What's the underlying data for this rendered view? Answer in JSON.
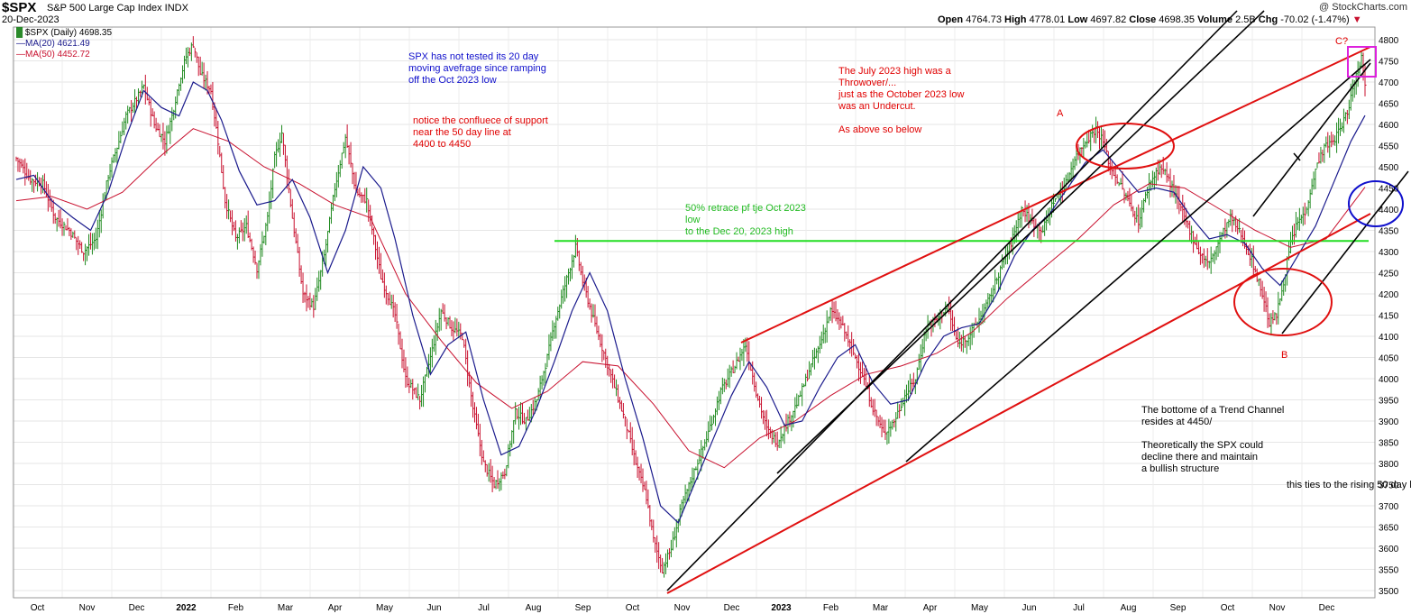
{
  "header": {
    "symbol": "$SPX",
    "name": "S&P 500 Large Cap Index INDX",
    "date": "20-Dec-2023",
    "credit": "@ StockCharts.com",
    "ohlc": {
      "open_label": "Open",
      "open": "4764.73",
      "high_label": "High",
      "high": "4778.01",
      "low_label": "Low",
      "low": "4697.82",
      "close_label": "Close",
      "close": "4698.35",
      "volume_label": "Volume",
      "volume": "2.5B",
      "chg_label": "Chg",
      "chg": "-70.02 (-1.47%)"
    }
  },
  "legend": [
    {
      "text": "$SPX (Daily) 4698.35",
      "color": "#000000"
    },
    {
      "text": "MA(20) 4621.49",
      "color": "#1a1a8c"
    },
    {
      "text": "MA(50) 4452.72",
      "color": "#c8102e"
    }
  ],
  "annotations": [
    {
      "text": "SPX has not tested its 20 day\nmoving avefrage since ramping\noff the Oct 2023 low",
      "color": "#1010cc"
    },
    {
      "text": "notice the confluece of support\nnear the 50 day line at\n4400 to 4450",
      "color": "#e00000"
    },
    {
      "text": "The July 2023 high was a\nThrowover/...\njust as the October 2023 low\nwas an Undercut.\n\nAs above so below",
      "color": "#e00000"
    },
    {
      "text": "50% retrace pf tje Oct 2023\nlow\nto the Dec 20, 2023 high",
      "color": "#22bb22"
    },
    {
      "text": "The bottome of a Trend Channel\nresides at 4450/\n\nTheoretically the SPX could\ndecline there and maintain\na bullish structure",
      "color": "#000000"
    },
    {
      "text": "this ties to the rising 50 day li",
      "color": "#000000"
    },
    {
      "text": "A",
      "color": "#e00000"
    },
    {
      "text": "B",
      "color": "#e00000"
    },
    {
      "text": "C?",
      "color": "#e00000"
    }
  ],
  "chart_data": {
    "type": "line",
    "title": "$SPX S&P 500 Large Cap Index INDX",
    "xlabel": "",
    "ylabel": "",
    "ylim": [
      3480,
      4830
    ],
    "y_ticks": [
      3500,
      3550,
      3600,
      3650,
      3700,
      3750,
      3800,
      3850,
      3900,
      3950,
      4000,
      4050,
      4100,
      4150,
      4200,
      4250,
      4300,
      4350,
      4400,
      4450,
      4500,
      4550,
      4600,
      4650,
      4700,
      4750,
      4800
    ],
    "x_ticks": [
      {
        "label": "Oct",
        "bold": false
      },
      {
        "label": "Nov",
        "bold": false
      },
      {
        "label": "Dec",
        "bold": false
      },
      {
        "label": "2022",
        "bold": true
      },
      {
        "label": "Feb",
        "bold": false
      },
      {
        "label": "Mar",
        "bold": false
      },
      {
        "label": "Apr",
        "bold": false
      },
      {
        "label": "May",
        "bold": false
      },
      {
        "label": "Jun",
        "bold": false
      },
      {
        "label": "Jul",
        "bold": false
      },
      {
        "label": "Aug",
        "bold": false
      },
      {
        "label": "Sep",
        "bold": false
      },
      {
        "label": "Oct",
        "bold": false
      },
      {
        "label": "Nov",
        "bold": false
      },
      {
        "label": "Dec",
        "bold": false
      },
      {
        "label": "2023",
        "bold": true
      },
      {
        "label": "Feb",
        "bold": false
      },
      {
        "label": "Mar",
        "bold": false
      },
      {
        "label": "Apr",
        "bold": false
      },
      {
        "label": "May",
        "bold": false
      },
      {
        "label": "Jun",
        "bold": false
      },
      {
        "label": "Jul",
        "bold": false
      },
      {
        "label": "Aug",
        "bold": false
      },
      {
        "label": "Sep",
        "bold": false
      },
      {
        "label": "Oct",
        "bold": false
      },
      {
        "label": "Nov",
        "bold": false
      },
      {
        "label": "Dec",
        "bold": false
      }
    ],
    "price_path": [
      [
        0,
        4520
      ],
      [
        8,
        4470
      ],
      [
        15,
        4460
      ],
      [
        22,
        4380
      ],
      [
        30,
        4350
      ],
      [
        38,
        4300
      ],
      [
        45,
        4330
      ],
      [
        52,
        4480
      ],
      [
        58,
        4560
      ],
      [
        62,
        4620
      ],
      [
        68,
        4660
      ],
      [
        72,
        4690
      ],
      [
        78,
        4600
      ],
      [
        84,
        4560
      ],
      [
        88,
        4620
      ],
      [
        92,
        4700
      ],
      [
        96,
        4760
      ],
      [
        100,
        4790
      ],
      [
        104,
        4720
      ],
      [
        110,
        4680
      ],
      [
        114,
        4560
      ],
      [
        118,
        4420
      ],
      [
        124,
        4330
      ],
      [
        130,
        4360
      ],
      [
        136,
        4260
      ],
      [
        142,
        4380
      ],
      [
        146,
        4520
      ],
      [
        150,
        4580
      ],
      [
        156,
        4380
      ],
      [
        162,
        4200
      ],
      [
        168,
        4170
      ],
      [
        174,
        4290
      ],
      [
        180,
        4450
      ],
      [
        186,
        4570
      ],
      [
        192,
        4440
      ],
      [
        198,
        4420
      ],
      [
        206,
        4240
      ],
      [
        214,
        4150
      ],
      [
        220,
        4000
      ],
      [
        228,
        3950
      ],
      [
        234,
        4050
      ],
      [
        240,
        4160
      ],
      [
        246,
        4120
      ],
      [
        252,
        4100
      ],
      [
        258,
        3930
      ],
      [
        264,
        3800
      ],
      [
        270,
        3750
      ],
      [
        276,
        3780
      ],
      [
        282,
        3920
      ],
      [
        288,
        3900
      ],
      [
        294,
        3950
      ],
      [
        300,
        4050
      ],
      [
        304,
        4130
      ],
      [
        310,
        4220
      ],
      [
        316,
        4310
      ],
      [
        320,
        4230
      ],
      [
        326,
        4140
      ],
      [
        332,
        4060
      ],
      [
        338,
        3980
      ],
      [
        344,
        3900
      ],
      [
        350,
        3800
      ],
      [
        356,
        3720
      ],
      [
        360,
        3620
      ],
      [
        365,
        3550
      ],
      [
        370,
        3600
      ],
      [
        376,
        3700
      ],
      [
        382,
        3770
      ],
      [
        390,
        3860
      ],
      [
        398,
        3970
      ],
      [
        406,
        4030
      ],
      [
        412,
        4080
      ],
      [
        418,
        3970
      ],
      [
        424,
        3880
      ],
      [
        430,
        3850
      ],
      [
        436,
        3900
      ],
      [
        442,
        3950
      ],
      [
        448,
        4020
      ],
      [
        454,
        4080
      ],
      [
        460,
        4160
      ],
      [
        466,
        4130
      ],
      [
        472,
        4070
      ],
      [
        478,
        4010
      ],
      [
        484,
        3930
      ],
      [
        490,
        3870
      ],
      [
        496,
        3900
      ],
      [
        502,
        3960
      ],
      [
        508,
        4000
      ],
      [
        514,
        4120
      ],
      [
        520,
        4140
      ],
      [
        526,
        4170
      ],
      [
        532,
        4080
      ],
      [
        538,
        4100
      ],
      [
        544,
        4140
      ],
      [
        550,
        4190
      ],
      [
        556,
        4260
      ],
      [
        562,
        4320
      ],
      [
        568,
        4400
      ],
      [
        574,
        4370
      ],
      [
        580,
        4350
      ],
      [
        586,
        4420
      ],
      [
        592,
        4450
      ],
      [
        598,
        4520
      ],
      [
        604,
        4560
      ],
      [
        610,
        4590
      ],
      [
        614,
        4560
      ],
      [
        618,
        4500
      ],
      [
        622,
        4470
      ],
      [
        628,
        4420
      ],
      [
        634,
        4370
      ],
      [
        640,
        4460
      ],
      [
        646,
        4500
      ],
      [
        650,
        4480
      ],
      [
        656,
        4420
      ],
      [
        662,
        4360
      ],
      [
        668,
        4300
      ],
      [
        674,
        4270
      ],
      [
        680,
        4330
      ],
      [
        686,
        4380
      ],
      [
        692,
        4340
      ],
      [
        698,
        4280
      ],
      [
        704,
        4200
      ],
      [
        708,
        4130
      ],
      [
        712,
        4150
      ],
      [
        716,
        4230
      ],
      [
        720,
        4320
      ],
      [
        724,
        4370
      ],
      [
        728,
        4390
      ],
      [
        732,
        4460
      ],
      [
        736,
        4520
      ],
      [
        740,
        4550
      ],
      [
        744,
        4560
      ],
      [
        748,
        4590
      ],
      [
        752,
        4630
      ],
      [
        756,
        4700
      ],
      [
        760,
        4760
      ],
      [
        762,
        4698
      ]
    ],
    "ma20_path": [
      [
        0,
        4470
      ],
      [
        10,
        4480
      ],
      [
        20,
        4420
      ],
      [
        32,
        4380
      ],
      [
        42,
        4350
      ],
      [
        52,
        4440
      ],
      [
        62,
        4570
      ],
      [
        72,
        4680
      ],
      [
        82,
        4640
      ],
      [
        92,
        4620
      ],
      [
        100,
        4700
      ],
      [
        108,
        4680
      ],
      [
        116,
        4610
      ],
      [
        126,
        4490
      ],
      [
        136,
        4410
      ],
      [
        146,
        4420
      ],
      [
        156,
        4470
      ],
      [
        166,
        4380
      ],
      [
        176,
        4250
      ],
      [
        186,
        4350
      ],
      [
        196,
        4500
      ],
      [
        206,
        4450
      ],
      [
        214,
        4330
      ],
      [
        224,
        4150
      ],
      [
        234,
        4010
      ],
      [
        244,
        4080
      ],
      [
        254,
        4110
      ],
      [
        264,
        3950
      ],
      [
        274,
        3820
      ],
      [
        284,
        3840
      ],
      [
        294,
        3930
      ],
      [
        304,
        4040
      ],
      [
        314,
        4160
      ],
      [
        324,
        4250
      ],
      [
        334,
        4160
      ],
      [
        344,
        4000
      ],
      [
        354,
        3860
      ],
      [
        364,
        3700
      ],
      [
        374,
        3660
      ],
      [
        384,
        3760
      ],
      [
        394,
        3860
      ],
      [
        404,
        3960
      ],
      [
        414,
        4040
      ],
      [
        424,
        3980
      ],
      [
        434,
        3890
      ],
      [
        444,
        3900
      ],
      [
        454,
        3980
      ],
      [
        464,
        4050
      ],
      [
        474,
        4080
      ],
      [
        484,
        3990
      ],
      [
        494,
        3940
      ],
      [
        504,
        3950
      ],
      [
        514,
        4040
      ],
      [
        524,
        4100
      ],
      [
        534,
        4120
      ],
      [
        544,
        4130
      ],
      [
        554,
        4200
      ],
      [
        564,
        4290
      ],
      [
        574,
        4350
      ],
      [
        584,
        4390
      ],
      [
        594,
        4450
      ],
      [
        604,
        4510
      ],
      [
        614,
        4540
      ],
      [
        624,
        4490
      ],
      [
        634,
        4440
      ],
      [
        644,
        4450
      ],
      [
        654,
        4440
      ],
      [
        664,
        4380
      ],
      [
        674,
        4330
      ],
      [
        684,
        4340
      ],
      [
        694,
        4320
      ],
      [
        704,
        4260
      ],
      [
        714,
        4220
      ],
      [
        724,
        4290
      ],
      [
        734,
        4360
      ],
      [
        744,
        4460
      ],
      [
        754,
        4560
      ],
      [
        762,
        4621
      ]
    ],
    "ma50_path": [
      [
        0,
        4420
      ],
      [
        20,
        4430
      ],
      [
        40,
        4400
      ],
      [
        60,
        4440
      ],
      [
        80,
        4520
      ],
      [
        100,
        4590
      ],
      [
        120,
        4560
      ],
      [
        140,
        4500
      ],
      [
        160,
        4460
      ],
      [
        180,
        4410
      ],
      [
        200,
        4380
      ],
      [
        220,
        4200
      ],
      [
        240,
        4090
      ],
      [
        260,
        3990
      ],
      [
        280,
        3930
      ],
      [
        300,
        3970
      ],
      [
        320,
        4040
      ],
      [
        340,
        4030
      ],
      [
        360,
        3940
      ],
      [
        380,
        3830
      ],
      [
        400,
        3790
      ],
      [
        420,
        3860
      ],
      [
        440,
        3900
      ],
      [
        460,
        3960
      ],
      [
        480,
        4010
      ],
      [
        500,
        4030
      ],
      [
        520,
        4060
      ],
      [
        540,
        4110
      ],
      [
        560,
        4190
      ],
      [
        580,
        4260
      ],
      [
        600,
        4330
      ],
      [
        620,
        4410
      ],
      [
        640,
        4460
      ],
      [
        660,
        4450
      ],
      [
        680,
        4400
      ],
      [
        700,
        4350
      ],
      [
        720,
        4310
      ],
      [
        740,
        4330
      ],
      [
        762,
        4452
      ]
    ],
    "retrace_level": 4325
  }
}
